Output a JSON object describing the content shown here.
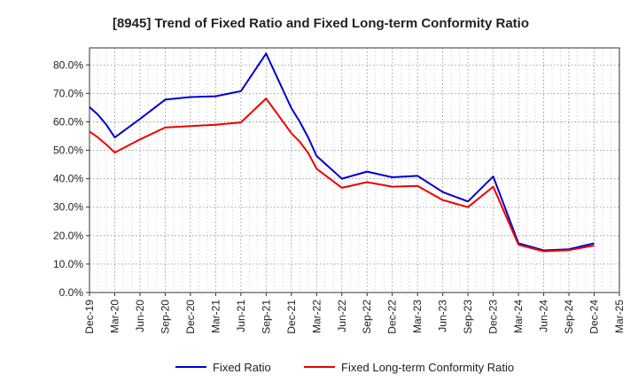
{
  "chart_data": {
    "type": "line",
    "title": "[8945]  Trend of Fixed Ratio and Fixed Long-term Conformity Ratio",
    "xlabel": "",
    "ylabel": "",
    "x_ticks": [
      "Dec-19",
      "Mar-20",
      "Jun-20",
      "Sep-20",
      "Dec-20",
      "Mar-21",
      "Jun-21",
      "Sep-21",
      "Dec-21",
      "Mar-22",
      "Jun-22",
      "Sep-22",
      "Dec-22",
      "Mar-23",
      "Jun-23",
      "Sep-23",
      "Dec-23",
      "Mar-24",
      "Jun-24",
      "Sep-24",
      "Dec-24",
      "Mar-25"
    ],
    "y_ticks": [
      "0.0%",
      "10.0%",
      "20.0%",
      "30.0%",
      "40.0%",
      "50.0%",
      "60.0%",
      "70.0%",
      "80.0%"
    ],
    "ylim": [
      0,
      86
    ],
    "grid": true,
    "legend_position": "bottom",
    "series": [
      {
        "name": "Fixed Ratio",
        "color": "#0000cc",
        "points": [
          [
            "Dec-19",
            65.2
          ],
          [
            "Jan-20",
            62.5
          ],
          [
            "Feb-20",
            59.0
          ],
          [
            "Mar-20",
            54.5
          ],
          [
            "Jun-20",
            61.0
          ],
          [
            "Sep-20",
            67.8
          ],
          [
            "Dec-20",
            68.7
          ],
          [
            "Mar-21",
            69.0
          ],
          [
            "Jun-21",
            70.8
          ],
          [
            "Sep-21",
            84.0
          ],
          [
            "Dec-21",
            64.8
          ],
          [
            "Jan-22",
            60.0
          ],
          [
            "Feb-22",
            54.5
          ],
          [
            "Mar-22",
            48.0
          ],
          [
            "Jun-22",
            40.0
          ],
          [
            "Sep-22",
            42.5
          ],
          [
            "Dec-22",
            40.5
          ],
          [
            "Mar-23",
            41.0
          ],
          [
            "Jun-23",
            35.3
          ],
          [
            "Sep-23",
            32.0
          ],
          [
            "Dec-23",
            40.8
          ],
          [
            "Mar-24",
            17.3
          ],
          [
            "Jun-24",
            14.8
          ],
          [
            "Sep-24",
            15.2
          ],
          [
            "Dec-24",
            17.3
          ]
        ]
      },
      {
        "name": "Fixed Long-term Conformity Ratio",
        "color": "#ee0000",
        "points": [
          [
            "Dec-19",
            56.6
          ],
          [
            "Jan-20",
            54.5
          ],
          [
            "Feb-20",
            52.0
          ],
          [
            "Mar-20",
            49.2
          ],
          [
            "Jun-20",
            53.8
          ],
          [
            "Sep-20",
            58.0
          ],
          [
            "Dec-20",
            58.5
          ],
          [
            "Mar-21",
            59.0
          ],
          [
            "Jun-21",
            59.8
          ],
          [
            "Sep-21",
            68.2
          ],
          [
            "Dec-21",
            56.0
          ],
          [
            "Jan-22",
            53.0
          ],
          [
            "Feb-22",
            49.0
          ],
          [
            "Mar-22",
            43.5
          ],
          [
            "Jun-22",
            36.8
          ],
          [
            "Sep-22",
            38.8
          ],
          [
            "Dec-22",
            37.2
          ],
          [
            "Mar-23",
            37.5
          ],
          [
            "Jun-23",
            32.5
          ],
          [
            "Sep-23",
            30.0
          ],
          [
            "Dec-23",
            37.2
          ],
          [
            "Mar-24",
            16.8
          ],
          [
            "Jun-24",
            14.5
          ],
          [
            "Sep-24",
            14.9
          ],
          [
            "Dec-24",
            16.5
          ]
        ]
      }
    ]
  }
}
